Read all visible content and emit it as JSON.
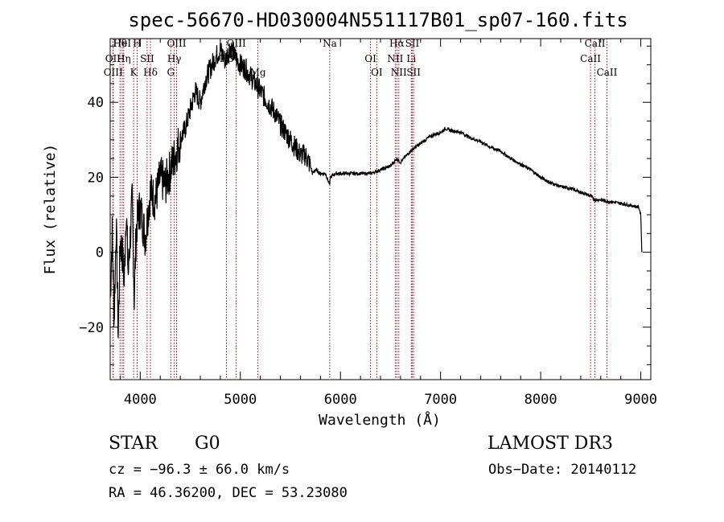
{
  "chart_data": {
    "type": "line",
    "title": "spec-56670-HD030004N551117B01_sp07-160.fits",
    "xlabel": "Wavelength (Å)",
    "ylabel": "Flux (relative)",
    "xlim": [
      3700,
      9100
    ],
    "ylim": [
      -34,
      57
    ],
    "xticks": [
      4000,
      5000,
      6000,
      7000,
      8000,
      9000
    ],
    "yticks": [
      -20,
      0,
      20,
      40
    ],
    "series": [
      {
        "name": "spectrum",
        "x": [
          3700,
          3720,
          3740,
          3760,
          3780,
          3800,
          3820,
          3840,
          3860,
          3880,
          3900,
          3920,
          3940,
          3960,
          3980,
          4000,
          4050,
          4100,
          4150,
          4200,
          4250,
          4300,
          4350,
          4400,
          4450,
          4500,
          4550,
          4600,
          4650,
          4700,
          4750,
          4800,
          4850,
          4900,
          4950,
          5000,
          5050,
          5100,
          5150,
          5200,
          5250,
          5300,
          5350,
          5400,
          5450,
          5500,
          5550,
          5600,
          5650,
          5700,
          5720,
          5750,
          5800,
          5850,
          5893,
          5900,
          5950,
          6000,
          6100,
          6200,
          6300,
          6400,
          6500,
          6563,
          6600,
          6700,
          6800,
          6900,
          7000,
          7050,
          7100,
          7200,
          7300,
          7400,
          7500,
          7600,
          7700,
          7800,
          7900,
          8000,
          8100,
          8200,
          8300,
          8400,
          8500,
          8542,
          8600,
          8662,
          8700,
          8800,
          8900,
          8980,
          9000,
          9010
        ],
        "values": [
          -12,
          5,
          -18,
          8,
          -22,
          3,
          0,
          -8,
          12,
          -6,
          4,
          14,
          -12,
          6,
          10,
          12,
          4,
          16,
          14,
          20,
          18,
          22,
          26,
          30,
          33,
          38,
          43,
          40,
          46,
          49,
          52,
          54,
          51,
          55,
          52,
          50,
          49,
          47,
          45,
          43,
          41,
          39,
          37,
          34,
          32,
          30,
          28,
          26,
          26,
          23,
          21,
          22,
          21,
          21,
          18,
          20,
          21,
          21,
          21,
          21,
          21,
          22,
          23,
          25,
          24,
          27,
          29,
          31,
          32,
          33,
          32.5,
          32,
          30.5,
          29.5,
          28,
          27,
          25,
          23.5,
          22,
          20,
          18.5,
          17.5,
          17,
          16,
          15,
          14,
          14,
          13.5,
          13.5,
          13,
          12.5,
          12,
          10,
          0
        ]
      }
    ],
    "lines": [
      {
        "label": "Hθ",
        "x": 3798
      },
      {
        "label": "OII",
        "x": 3727
      },
      {
        "label": "OIII",
        "x": 3730
      },
      {
        "label": "HeI",
        "x": 3820
      },
      {
        "label": "Hη",
        "x": 3835
      },
      {
        "label": "K",
        "x": 3934
      },
      {
        "label": "H",
        "x": 3969
      },
      {
        "label": "SII",
        "x": 4069
      },
      {
        "label": "Hδ",
        "x": 4102
      },
      {
        "label": "OIII",
        "x": 4363
      },
      {
        "label": "Hγ",
        "x": 4340
      },
      {
        "label": "G",
        "x": 4305
      },
      {
        "label": "OIII",
        "x": 4959
      },
      {
        "label": "Hβ",
        "x": 4861
      },
      {
        "label": "Mg",
        "x": 5175
      },
      {
        "label": "Na",
        "x": 5893
      },
      {
        "label": "OI",
        "x": 6300
      },
      {
        "label": "OI",
        "x": 6363
      },
      {
        "label": "Hα",
        "x": 6563
      },
      {
        "label": "NII",
        "x": 6548
      },
      {
        "label": "NII",
        "x": 6583
      },
      {
        "label": "SII",
        "x": 6717
      },
      {
        "label": "Li",
        "x": 6708
      },
      {
        "label": "SII",
        "x": 6731
      },
      {
        "label": "CaII",
        "x": 8542
      },
      {
        "label": "CaII",
        "x": 8498
      },
      {
        "label": "CaII",
        "x": 8662
      }
    ]
  },
  "info": {
    "object_class": "STAR",
    "subclass": "G0",
    "survey": "LAMOST DR3",
    "cz": "cz = −96.3 ± 66.0 km/s",
    "obs_date": "Obs−Date: 20140112",
    "coords": "RA =  46.36200, DEC =  53.23080"
  },
  "colors": {
    "spectrum": "#000000",
    "line_marker": "#b00000",
    "axis": "#000000"
  }
}
